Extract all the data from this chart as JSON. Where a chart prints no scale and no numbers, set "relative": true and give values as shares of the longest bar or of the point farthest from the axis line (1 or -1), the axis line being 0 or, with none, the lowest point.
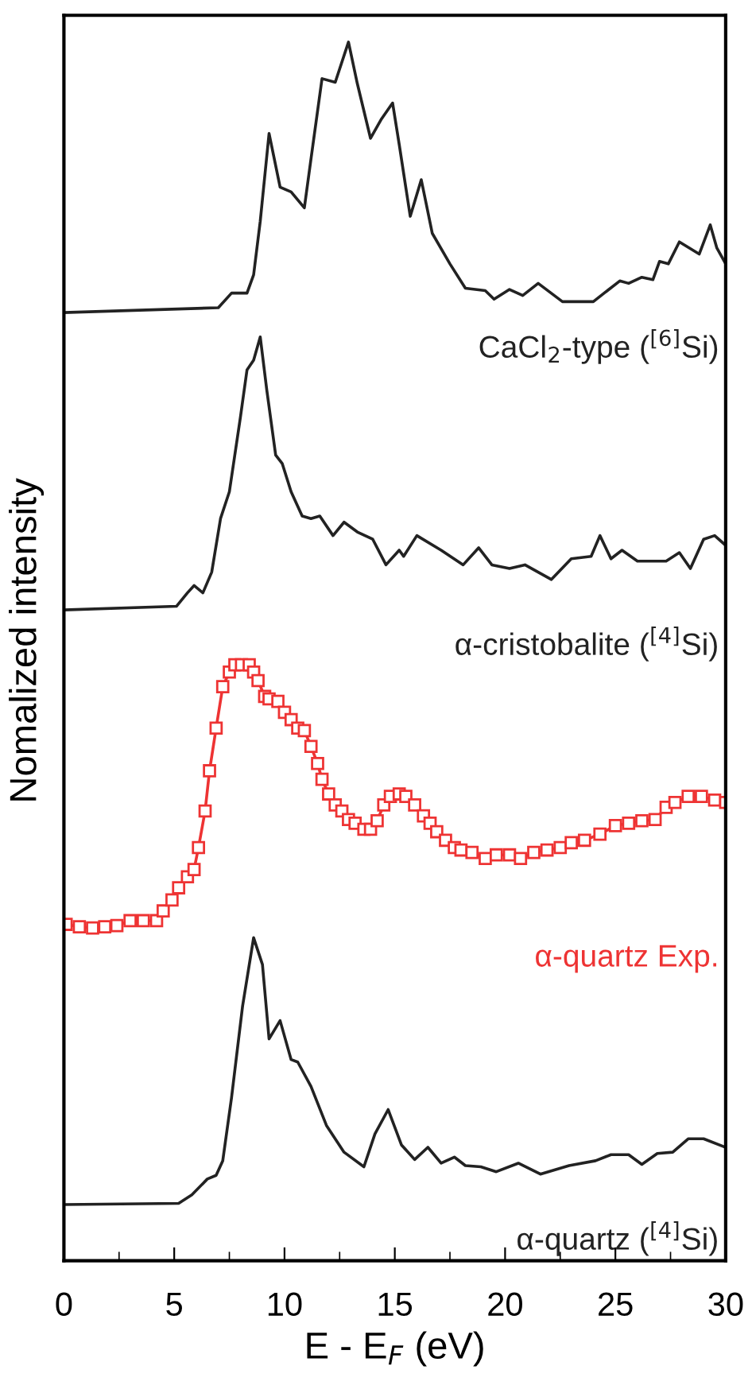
{
  "chart_data": {
    "type": "line",
    "relative": true,
    "xlabel": "E - E$_{F}$ (eV)",
    "ylabel": "Nomalized intensity",
    "xlim": [
      0,
      30
    ],
    "xticks": [
      0,
      5,
      10,
      15,
      20,
      25,
      30
    ],
    "grid": false,
    "legend": false,
    "line_style": "solid",
    "series": [
      {
        "name": "CaCl$_{2}$-type ($^{[6]}$Si)",
        "color": "#222222",
        "marker": "none",
        "x": [
          0,
          7.0,
          7.6,
          8.3,
          8.6,
          8.9,
          9.3,
          9.8,
          10.3,
          10.9,
          11.2,
          11.7,
          12.3,
          12.9,
          13.3,
          13.9,
          14.4,
          14.9,
          15.2,
          15.7,
          16.2,
          16.7,
          17.5,
          18.2,
          19.1,
          19.5,
          20.2,
          20.8,
          21.5,
          22.6,
          24.0,
          25.2,
          25.6,
          26.2,
          26.7,
          27.0,
          27.4,
          27.9,
          28.8,
          29.3,
          29.6,
          30.0
        ],
        "values": [
          0.778,
          0.782,
          0.794,
          0.794,
          0.809,
          0.853,
          0.925,
          0.881,
          0.877,
          0.864,
          0.904,
          0.97,
          0.967,
          1.0,
          0.966,
          0.921,
          0.937,
          0.95,
          0.916,
          0.857,
          0.887,
          0.843,
          0.818,
          0.798,
          0.796,
          0.789,
          0.797,
          0.792,
          0.802,
          0.787,
          0.787,
          0.804,
          0.802,
          0.807,
          0.805,
          0.82,
          0.818,
          0.836,
          0.826,
          0.85,
          0.831,
          0.818
        ]
      },
      {
        "name": "α-cristobalite ($^{[4]}$Si)",
        "color": "#222222",
        "marker": "none",
        "x": [
          0,
          5.1,
          5.6,
          5.9,
          6.3,
          6.7,
          7.1,
          7.5,
          8.0,
          8.3,
          8.6,
          8.9,
          9.2,
          9.6,
          9.9,
          10.3,
          10.8,
          11.2,
          11.6,
          12.2,
          12.7,
          13.3,
          14.0,
          14.6,
          15.2,
          15.4,
          16.0,
          17.1,
          18.1,
          18.8,
          19.4,
          20.2,
          20.9,
          22.1,
          23.0,
          23.9,
          24.3,
          24.8,
          25.3,
          26.0,
          27.3,
          27.9,
          28.4,
          29.0,
          29.5,
          30.0
        ],
        "values": [
          0.534,
          0.537,
          0.548,
          0.554,
          0.548,
          0.565,
          0.609,
          0.631,
          0.692,
          0.731,
          0.739,
          0.758,
          0.714,
          0.661,
          0.654,
          0.631,
          0.611,
          0.609,
          0.611,
          0.595,
          0.606,
          0.598,
          0.592,
          0.571,
          0.583,
          0.578,
          0.595,
          0.583,
          0.571,
          0.585,
          0.571,
          0.568,
          0.571,
          0.559,
          0.576,
          0.578,
          0.595,
          0.576,
          0.583,
          0.574,
          0.574,
          0.581,
          0.568,
          0.592,
          0.595,
          0.587
        ]
      },
      {
        "name": "α-quartz Exp.",
        "color": "#ee3333",
        "marker": "square",
        "x": [
          0.1,
          0.7,
          1.3,
          1.85,
          2.4,
          3.0,
          3.6,
          4.2,
          4.5,
          4.9,
          5.2,
          5.6,
          5.9,
          6.1,
          6.4,
          6.6,
          6.9,
          7.2,
          7.5,
          7.75,
          8.05,
          8.4,
          8.6,
          8.8,
          9.1,
          9.3,
          9.7,
          10.0,
          10.3,
          10.6,
          10.9,
          11.2,
          11.5,
          11.7,
          12.0,
          12.3,
          12.6,
          12.9,
          13.2,
          13.6,
          13.9,
          14.2,
          14.5,
          14.8,
          15.2,
          15.5,
          15.9,
          16.3,
          16.6,
          16.9,
          17.3,
          17.7,
          18.0,
          18.5,
          19.1,
          19.6,
          20.2,
          20.7,
          21.3,
          21.9,
          22.5,
          23.0,
          23.6,
          24.3,
          25.0,
          25.6,
          26.2,
          26.8,
          27.3,
          27.7,
          28.3,
          28.9,
          29.5,
          30.0
        ],
        "values": [
          0.276,
          0.274,
          0.273,
          0.274,
          0.275,
          0.279,
          0.279,
          0.279,
          0.287,
          0.296,
          0.306,
          0.315,
          0.321,
          0.339,
          0.369,
          0.402,
          0.437,
          0.471,
          0.483,
          0.489,
          0.489,
          0.489,
          0.483,
          0.476,
          0.463,
          0.461,
          0.459,
          0.45,
          0.444,
          0.437,
          0.435,
          0.422,
          0.408,
          0.395,
          0.383,
          0.374,
          0.369,
          0.362,
          0.359,
          0.354,
          0.354,
          0.361,
          0.374,
          0.381,
          0.383,
          0.381,
          0.374,
          0.365,
          0.359,
          0.352,
          0.345,
          0.339,
          0.337,
          0.335,
          0.33,
          0.333,
          0.333,
          0.33,
          0.335,
          0.337,
          0.339,
          0.343,
          0.345,
          0.35,
          0.357,
          0.359,
          0.361,
          0.362,
          0.372,
          0.376,
          0.381,
          0.381,
          0.378,
          0.376
        ]
      },
      {
        "name": "α-quartz ($^{[4]}$Si)",
        "color": "#222222",
        "marker": "none",
        "x": [
          0,
          5.2,
          5.8,
          6.5,
          6.9,
          7.2,
          7.6,
          8.1,
          8.6,
          9.0,
          9.3,
          9.8,
          10.3,
          10.6,
          11.2,
          11.9,
          12.7,
          13.6,
          14.1,
          14.7,
          15.3,
          15.9,
          16.5,
          17.1,
          17.7,
          18.2,
          18.9,
          19.6,
          20.6,
          21.6,
          22.9,
          24.1,
          24.8,
          25.6,
          26.2,
          26.9,
          27.6,
          28.3,
          29.0,
          30.0
        ],
        "values": [
          0.046,
          0.047,
          0.054,
          0.067,
          0.07,
          0.082,
          0.134,
          0.209,
          0.265,
          0.243,
          0.182,
          0.197,
          0.165,
          0.163,
          0.143,
          0.111,
          0.089,
          0.077,
          0.104,
          0.124,
          0.095,
          0.083,
          0.093,
          0.08,
          0.085,
          0.078,
          0.077,
          0.073,
          0.08,
          0.071,
          0.078,
          0.082,
          0.087,
          0.087,
          0.079,
          0.088,
          0.089,
          0.1,
          0.1,
          0.093
        ]
      }
    ]
  }
}
